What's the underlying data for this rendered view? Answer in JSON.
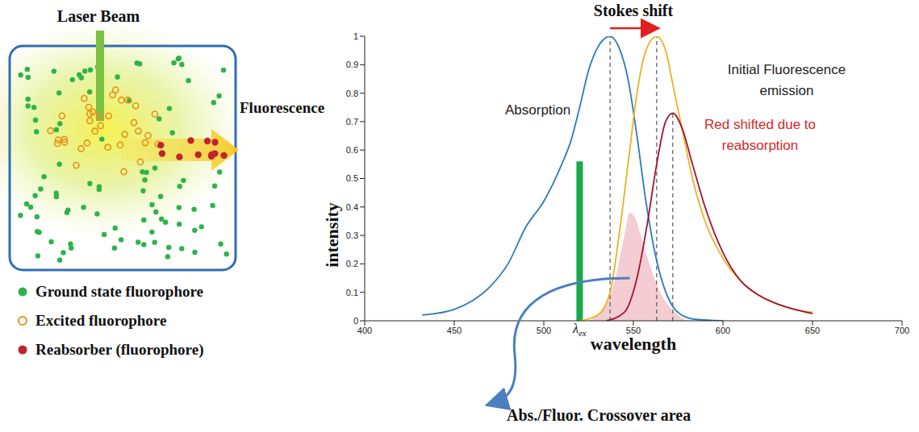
{
  "chart_data": {
    "type": "line",
    "x_label": "wavelength",
    "y_label": "intensity",
    "xlim": [
      400,
      700
    ],
    "xticks": [
      400,
      450,
      500,
      550,
      600,
      650,
      700
    ],
    "ylim": [
      0,
      1
    ],
    "yticks": [
      0,
      0.1,
      0.2,
      0.3,
      0.4,
      0.5,
      0.6,
      0.7,
      0.8,
      0.9,
      1
    ],
    "grid": false,
    "series": [
      {
        "name": "Absorption",
        "type": "line",
        "color": "#2b7bba",
        "label_color": "#222222",
        "x": [
          432,
          450,
          460,
          470,
          480,
          490,
          500,
          505,
          510,
          515,
          520,
          525,
          530,
          537,
          542,
          547,
          552,
          557,
          562,
          567,
          572,
          577,
          585,
          600
        ],
        "values": [
          0.02,
          0.04,
          0.07,
          0.12,
          0.2,
          0.33,
          0.42,
          0.48,
          0.55,
          0.63,
          0.75,
          0.88,
          0.96,
          1,
          0.96,
          0.85,
          0.65,
          0.42,
          0.24,
          0.12,
          0.05,
          0.02,
          0.005,
          0
        ]
      },
      {
        "name": "Initial Fluorescence emission",
        "type": "line",
        "color": "#edb120",
        "label_color": "#222222",
        "x": [
          520,
          530,
          537,
          542,
          547,
          552,
          557,
          563,
          568,
          573,
          578,
          583,
          590,
          600,
          610,
          620,
          630,
          640,
          650
        ],
        "values": [
          0,
          0.02,
          0.1,
          0.3,
          0.55,
          0.8,
          0.95,
          1,
          0.95,
          0.8,
          0.65,
          0.5,
          0.35,
          0.22,
          0.14,
          0.09,
          0.06,
          0.04,
          0.03
        ]
      },
      {
        "name": "Red shifted due to reabsorption",
        "type": "line",
        "color": "#a2142f",
        "label_color": "#d62728",
        "x": [
          535,
          545,
          552,
          558,
          563,
          568,
          572,
          577,
          583,
          590,
          600,
          610,
          620,
          630,
          640,
          650
        ],
        "values": [
          0,
          0.03,
          0.15,
          0.35,
          0.55,
          0.7,
          0.73,
          0.68,
          0.55,
          0.4,
          0.24,
          0.14,
          0.09,
          0.06,
          0.04,
          0.025
        ]
      },
      {
        "name": "Abs./Fluor. Crossover area",
        "type": "area",
        "color": "#f2c4ca",
        "label_color": "#111111",
        "x": [
          525,
          530,
          535,
          540,
          545,
          548,
          551,
          555,
          560,
          565,
          570,
          575,
          580
        ],
        "values": [
          0,
          0.02,
          0.06,
          0.15,
          0.3,
          0.38,
          0.36,
          0.28,
          0.18,
          0.1,
          0.05,
          0.02,
          0
        ]
      }
    ],
    "stokes_shift": {
      "label": "Stokes shift",
      "from": 537,
      "to": 563,
      "color": "#e0201b"
    },
    "excitation": {
      "label": "λex",
      "x": 520,
      "value": 0.56,
      "color": "#1aa84a"
    },
    "peak_lines": [
      {
        "x": 537,
        "value": 1
      },
      {
        "x": 563,
        "value": 1
      },
      {
        "x": 572,
        "value": 0.73
      }
    ]
  },
  "diagram": {
    "laser_label": "Laser Beam",
    "fluorescence_label": "Fluorescence",
    "legend": [
      {
        "label": "Ground state fluorophore",
        "marker": "filled",
        "color": "#2db34a"
      },
      {
        "label": "Excited fluorophore",
        "marker": "open",
        "color": "#e8901a"
      },
      {
        "label": "Reabsorber (fluorophore)",
        "marker": "filled",
        "color": "#c0232f"
      }
    ]
  }
}
